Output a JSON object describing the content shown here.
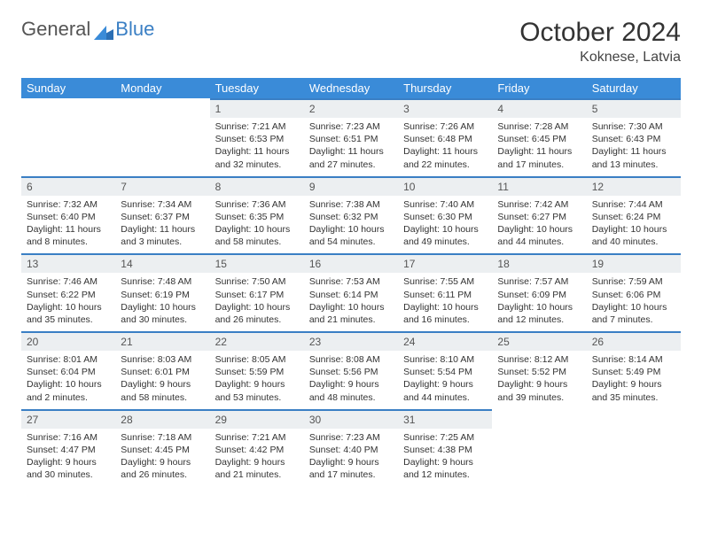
{
  "brand": {
    "word1": "General",
    "word2": "Blue"
  },
  "title": "October 2024",
  "location": "Koknese, Latvia",
  "colors": {
    "header_bg": "#3a8bd8",
    "accent": "#3a7fc4",
    "daynum_bg": "#eceff1",
    "text": "#333333",
    "page_bg": "#ffffff"
  },
  "weekdays": [
    "Sunday",
    "Monday",
    "Tuesday",
    "Wednesday",
    "Thursday",
    "Friday",
    "Saturday"
  ],
  "weeks": [
    [
      {
        "n": "",
        "sun": "",
        "set": "",
        "day": ""
      },
      {
        "n": "",
        "sun": "",
        "set": "",
        "day": ""
      },
      {
        "n": "1",
        "sun": "Sunrise: 7:21 AM",
        "set": "Sunset: 6:53 PM",
        "day": "Daylight: 11 hours and 32 minutes."
      },
      {
        "n": "2",
        "sun": "Sunrise: 7:23 AM",
        "set": "Sunset: 6:51 PM",
        "day": "Daylight: 11 hours and 27 minutes."
      },
      {
        "n": "3",
        "sun": "Sunrise: 7:26 AM",
        "set": "Sunset: 6:48 PM",
        "day": "Daylight: 11 hours and 22 minutes."
      },
      {
        "n": "4",
        "sun": "Sunrise: 7:28 AM",
        "set": "Sunset: 6:45 PM",
        "day": "Daylight: 11 hours and 17 minutes."
      },
      {
        "n": "5",
        "sun": "Sunrise: 7:30 AM",
        "set": "Sunset: 6:43 PM",
        "day": "Daylight: 11 hours and 13 minutes."
      }
    ],
    [
      {
        "n": "6",
        "sun": "Sunrise: 7:32 AM",
        "set": "Sunset: 6:40 PM",
        "day": "Daylight: 11 hours and 8 minutes."
      },
      {
        "n": "7",
        "sun": "Sunrise: 7:34 AM",
        "set": "Sunset: 6:37 PM",
        "day": "Daylight: 11 hours and 3 minutes."
      },
      {
        "n": "8",
        "sun": "Sunrise: 7:36 AM",
        "set": "Sunset: 6:35 PM",
        "day": "Daylight: 10 hours and 58 minutes."
      },
      {
        "n": "9",
        "sun": "Sunrise: 7:38 AM",
        "set": "Sunset: 6:32 PM",
        "day": "Daylight: 10 hours and 54 minutes."
      },
      {
        "n": "10",
        "sun": "Sunrise: 7:40 AM",
        "set": "Sunset: 6:30 PM",
        "day": "Daylight: 10 hours and 49 minutes."
      },
      {
        "n": "11",
        "sun": "Sunrise: 7:42 AM",
        "set": "Sunset: 6:27 PM",
        "day": "Daylight: 10 hours and 44 minutes."
      },
      {
        "n": "12",
        "sun": "Sunrise: 7:44 AM",
        "set": "Sunset: 6:24 PM",
        "day": "Daylight: 10 hours and 40 minutes."
      }
    ],
    [
      {
        "n": "13",
        "sun": "Sunrise: 7:46 AM",
        "set": "Sunset: 6:22 PM",
        "day": "Daylight: 10 hours and 35 minutes."
      },
      {
        "n": "14",
        "sun": "Sunrise: 7:48 AM",
        "set": "Sunset: 6:19 PM",
        "day": "Daylight: 10 hours and 30 minutes."
      },
      {
        "n": "15",
        "sun": "Sunrise: 7:50 AM",
        "set": "Sunset: 6:17 PM",
        "day": "Daylight: 10 hours and 26 minutes."
      },
      {
        "n": "16",
        "sun": "Sunrise: 7:53 AM",
        "set": "Sunset: 6:14 PM",
        "day": "Daylight: 10 hours and 21 minutes."
      },
      {
        "n": "17",
        "sun": "Sunrise: 7:55 AM",
        "set": "Sunset: 6:11 PM",
        "day": "Daylight: 10 hours and 16 minutes."
      },
      {
        "n": "18",
        "sun": "Sunrise: 7:57 AM",
        "set": "Sunset: 6:09 PM",
        "day": "Daylight: 10 hours and 12 minutes."
      },
      {
        "n": "19",
        "sun": "Sunrise: 7:59 AM",
        "set": "Sunset: 6:06 PM",
        "day": "Daylight: 10 hours and 7 minutes."
      }
    ],
    [
      {
        "n": "20",
        "sun": "Sunrise: 8:01 AM",
        "set": "Sunset: 6:04 PM",
        "day": "Daylight: 10 hours and 2 minutes."
      },
      {
        "n": "21",
        "sun": "Sunrise: 8:03 AM",
        "set": "Sunset: 6:01 PM",
        "day": "Daylight: 9 hours and 58 minutes."
      },
      {
        "n": "22",
        "sun": "Sunrise: 8:05 AM",
        "set": "Sunset: 5:59 PM",
        "day": "Daylight: 9 hours and 53 minutes."
      },
      {
        "n": "23",
        "sun": "Sunrise: 8:08 AM",
        "set": "Sunset: 5:56 PM",
        "day": "Daylight: 9 hours and 48 minutes."
      },
      {
        "n": "24",
        "sun": "Sunrise: 8:10 AM",
        "set": "Sunset: 5:54 PM",
        "day": "Daylight: 9 hours and 44 minutes."
      },
      {
        "n": "25",
        "sun": "Sunrise: 8:12 AM",
        "set": "Sunset: 5:52 PM",
        "day": "Daylight: 9 hours and 39 minutes."
      },
      {
        "n": "26",
        "sun": "Sunrise: 8:14 AM",
        "set": "Sunset: 5:49 PM",
        "day": "Daylight: 9 hours and 35 minutes."
      }
    ],
    [
      {
        "n": "27",
        "sun": "Sunrise: 7:16 AM",
        "set": "Sunset: 4:47 PM",
        "day": "Daylight: 9 hours and 30 minutes."
      },
      {
        "n": "28",
        "sun": "Sunrise: 7:18 AM",
        "set": "Sunset: 4:45 PM",
        "day": "Daylight: 9 hours and 26 minutes."
      },
      {
        "n": "29",
        "sun": "Sunrise: 7:21 AM",
        "set": "Sunset: 4:42 PM",
        "day": "Daylight: 9 hours and 21 minutes."
      },
      {
        "n": "30",
        "sun": "Sunrise: 7:23 AM",
        "set": "Sunset: 4:40 PM",
        "day": "Daylight: 9 hours and 17 minutes."
      },
      {
        "n": "31",
        "sun": "Sunrise: 7:25 AM",
        "set": "Sunset: 4:38 PM",
        "day": "Daylight: 9 hours and 12 minutes."
      },
      {
        "n": "",
        "sun": "",
        "set": "",
        "day": ""
      },
      {
        "n": "",
        "sun": "",
        "set": "",
        "day": ""
      }
    ]
  ]
}
